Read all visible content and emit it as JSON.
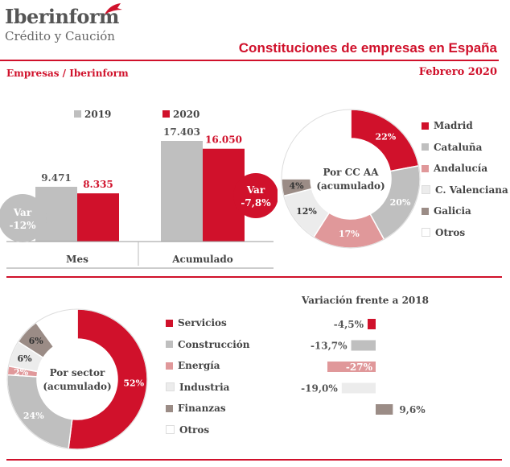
{
  "header": {
    "brand": "Iberinform",
    "brand_sub": "Crédito y Caución",
    "report_title": "Constituciones de empresas en España",
    "source": "Empresas / Iberinform",
    "period": "Febrero 2020"
  },
  "colors": {
    "red": "#d0112b",
    "grey": "#bfbfbf",
    "pink": "#e0989a",
    "light_grey": "#ececec",
    "taupe": "#9b8c86",
    "white": "#ffffff"
  },
  "chart_data": [
    {
      "type": "bar",
      "categories": [
        "Mes",
        "Acumulado"
      ],
      "series": [
        {
          "name": "2019",
          "values": [
            9471,
            17403
          ],
          "labels": [
            "9.471",
            "17.403"
          ]
        },
        {
          "name": "2020",
          "values": [
            8335,
            16050
          ],
          "labels": [
            "8.335",
            "16.050"
          ]
        }
      ],
      "annotations": [
        {
          "title": "Var",
          "value": "-12%"
        },
        {
          "title": "Var",
          "value": "-7,8%"
        }
      ]
    },
    {
      "type": "pie",
      "center_label": [
        "Por CC AA",
        "(acumulado)"
      ],
      "slices": [
        {
          "name": "Madrid",
          "value": 22,
          "label": "22%"
        },
        {
          "name": "Cataluña",
          "value": 20,
          "label": "20%"
        },
        {
          "name": "Andalucía",
          "value": 17,
          "label": "17%"
        },
        {
          "name": "C. Valenciana",
          "value": 12,
          "label": "12%"
        },
        {
          "name": "Galicia",
          "value": 4,
          "label": "4%"
        },
        {
          "name": "Otros",
          "value": 25,
          "label": ""
        }
      ]
    },
    {
      "type": "pie",
      "center_label": [
        "Por sector",
        "(acumulado)"
      ],
      "slices": [
        {
          "name": "Servicios",
          "value": 52,
          "label": "52%"
        },
        {
          "name": "Construcción",
          "value": 24,
          "label": "24%"
        },
        {
          "name": "Energía",
          "value": 2,
          "label": "2%"
        },
        {
          "name": "Industria",
          "value": 6,
          "label": "6%"
        },
        {
          "name": "Finanzas",
          "value": 6,
          "label": "6%"
        },
        {
          "name": "Otros",
          "value": 10,
          "label": ""
        }
      ]
    },
    {
      "type": "bar",
      "orientation": "horizontal",
      "title": "Variación frente a 2018",
      "categories": [
        "Servicios",
        "Construcción",
        "Energía",
        "Industria",
        "Finanzas"
      ],
      "values": [
        -4.5,
        -13.7,
        -27,
        -19.0,
        9.6
      ],
      "labels": [
        "-4,5%",
        "-13,7%",
        "-27%",
        "-19,0%",
        "9,6%"
      ]
    }
  ]
}
